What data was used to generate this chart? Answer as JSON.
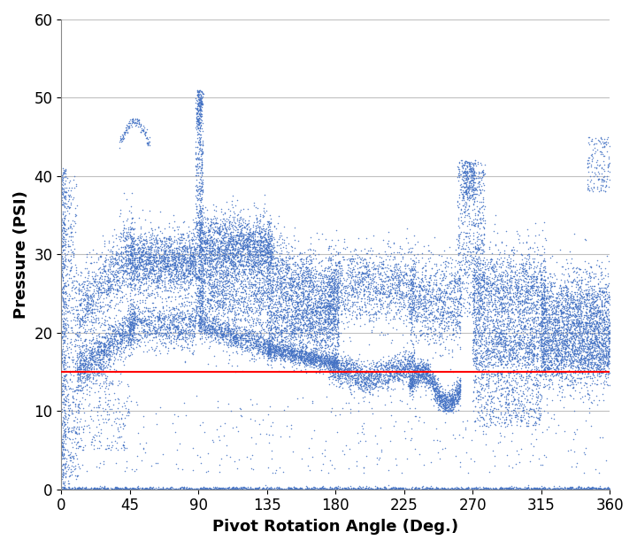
{
  "title": "",
  "xlabel": "Pivot Rotation Angle (Deg.)",
  "ylabel": "Pressure (PSI)",
  "xlim": [
    0,
    360
  ],
  "ylim": [
    0,
    60
  ],
  "xticks": [
    0,
    45,
    90,
    135,
    180,
    225,
    270,
    315,
    360
  ],
  "yticks": [
    0,
    10,
    20,
    30,
    40,
    50,
    60
  ],
  "red_line_y": 15,
  "dot_color": "#4472C4",
  "red_line_color": "#FF0000",
  "dot_size": 1.2,
  "dot_alpha": 0.85,
  "background_color": "#FFFFFF",
  "grid_color": "#C0C0C0",
  "xlabel_fontsize": 13,
  "ylabel_fontsize": 13,
  "tick_fontsize": 12
}
